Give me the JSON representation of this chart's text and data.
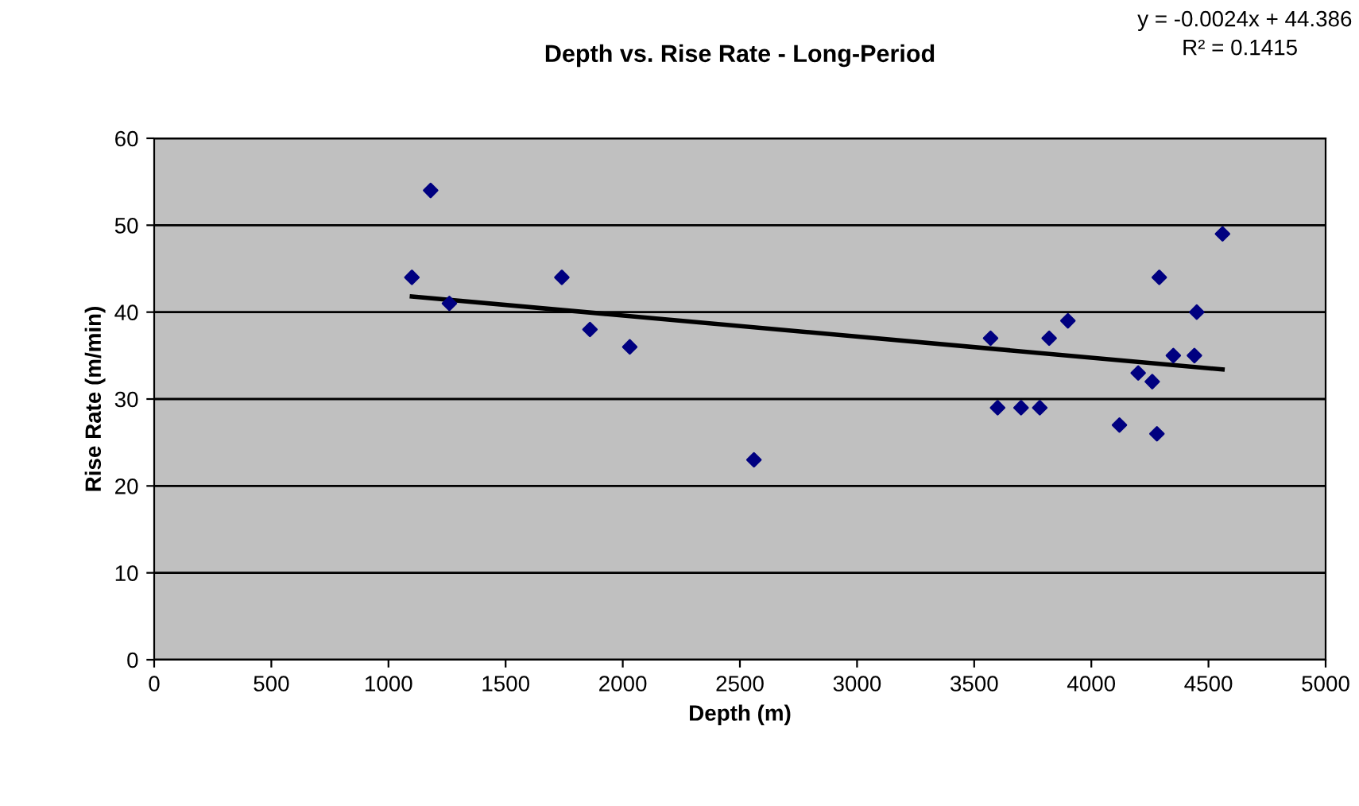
{
  "chart_data": {
    "type": "scatter",
    "title": "Depth vs. Rise Rate - Long-Period",
    "xlabel": "Depth (m)",
    "ylabel": "Rise Rate (m/min)",
    "xlim": [
      0,
      5000
    ],
    "xticks": [
      0,
      500,
      1000,
      1500,
      2000,
      2500,
      3000,
      3500,
      4000,
      4500,
      5000
    ],
    "ylim": [
      0,
      60
    ],
    "yticks": [
      0,
      10,
      20,
      30,
      40,
      50,
      60
    ],
    "grid": "y",
    "legend": false,
    "marker": "diamond",
    "series": [
      {
        "color": "#000080",
        "x": [
          1100,
          1180,
          1260,
          1740,
          1860,
          2030,
          2560,
          3570,
          3600,
          3700,
          3780,
          3820,
          3900,
          4120,
          4200,
          4260,
          4280,
          4290,
          4350,
          4440,
          4450,
          4560
        ],
        "values": [
          44,
          54,
          41,
          44,
          38,
          36,
          23,
          37,
          29,
          29,
          29,
          37,
          39,
          27,
          33,
          32,
          26,
          44,
          35,
          35,
          40,
          49
        ]
      },
      {
        "type": "line",
        "color": "#000000",
        "marker": "none",
        "line_style": "solid",
        "x": [
          1100,
          4560
        ],
        "values": [
          41.8,
          33.4
        ]
      }
    ],
    "annotations": [
      "y = -0.0024x + 44.386",
      "R² = 0.1415"
    ]
  }
}
